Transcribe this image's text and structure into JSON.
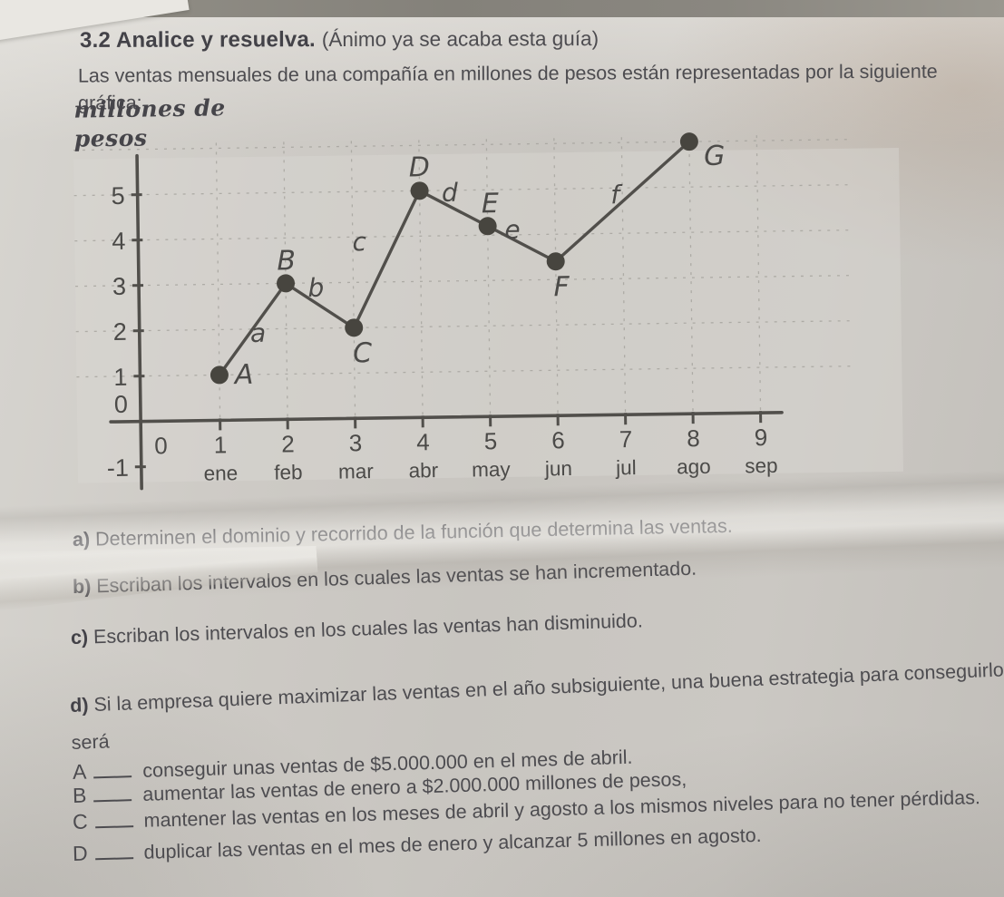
{
  "page": {
    "title": "3.2 Analice y resuelva.",
    "title_note": "(Ánimo ya se acaba esta guía)",
    "intro_lines": [
      "Las ventas mensuales de una compañía en millones de pesos están representadas por la siguiente",
      "gráfica:"
    ]
  },
  "chart_data": {
    "type": "line",
    "axis_title_line1": "millones de",
    "axis_title_line2": "pesos",
    "grid": "dashed",
    "xlim": [
      0,
      9.5
    ],
    "ylim": [
      -1,
      6.5
    ],
    "y_ticks": [
      5,
      4,
      3,
      2,
      1,
      0,
      -1
    ],
    "x_ticks": [
      {
        "n": 0,
        "label": "0",
        "month": ""
      },
      {
        "n": 1,
        "label": "1",
        "month": "ene"
      },
      {
        "n": 2,
        "label": "2",
        "month": "feb"
      },
      {
        "n": 3,
        "label": "3",
        "month": "mar"
      },
      {
        "n": 4,
        "label": "4",
        "month": "abr"
      },
      {
        "n": 5,
        "label": "5",
        "month": "may"
      },
      {
        "n": 6,
        "label": "6",
        "month": "jun"
      },
      {
        "n": 7,
        "label": "7",
        "month": "jul"
      },
      {
        "n": 8,
        "label": "8",
        "month": "ago"
      },
      {
        "n": 9,
        "label": "9",
        "month": "sep"
      }
    ],
    "points": [
      {
        "label": "A",
        "x": 1,
        "month": "ene",
        "y": 1
      },
      {
        "label": "B",
        "x": 2,
        "month": "feb",
        "y": 3
      },
      {
        "label": "C",
        "x": 3,
        "month": "mar",
        "y": 2
      },
      {
        "label": "D",
        "x": 4,
        "month": "abr",
        "y": 5
      },
      {
        "label": "E",
        "x": 5,
        "month": "may",
        "y": 4.2
      },
      {
        "label": "F",
        "x": 6,
        "month": "jun",
        "y": 3.4
      },
      {
        "label": "G",
        "x": 8,
        "month": "ago",
        "y": 6
      }
    ],
    "segments": [
      "a",
      "b",
      "c",
      "d",
      "e",
      "f"
    ]
  },
  "questions": [
    {
      "label": "a)",
      "text": "Determinen el dominio y recorrido de la función que determina las ventas."
    },
    {
      "label": "b)",
      "text": "Escriban los intervalos en los cuales las ventas se han incrementado."
    },
    {
      "label": "c)",
      "text": "Escriban los intervalos en los cuales las ventas han disminuido."
    },
    {
      "label": "d)",
      "text": "Si la empresa quiere maximizar las ventas en el año subsiguiente, una buena estrategia para conseguirlo será"
    }
  ],
  "options": [
    {
      "letter": "A",
      "text": "conseguir unas ventas de $5.000.000 en el mes de abril."
    },
    {
      "letter": "B",
      "text": "aumentar las ventas de enero a $2.000.000 millones de pesos,"
    },
    {
      "letter": "C",
      "text": "mantener las ventas en los meses de abril y agosto a los mismos niveles para no tener pérdidas."
    },
    {
      "letter": "D",
      "text": "duplicar las ventas en el mes de enero y alcanzar 5 millones en agosto."
    }
  ]
}
